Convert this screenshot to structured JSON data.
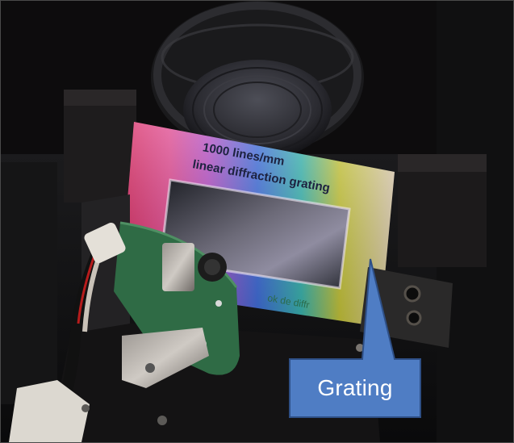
{
  "photo": {
    "grating_label_line1": "1000 lines/mm",
    "grating_label_line2": "linear diffraction grating",
    "pcb_text": "ok de diffr",
    "colors": {
      "background": "#0d0c0d",
      "callout_fill": "#4f7dc4",
      "callout_border": "#2e4f86",
      "callout_text": "#ffffff",
      "pcb_green": "#2f6b45"
    }
  },
  "callout": {
    "label": "Grating",
    "shape": "rectangular-callout-pointing-up"
  }
}
